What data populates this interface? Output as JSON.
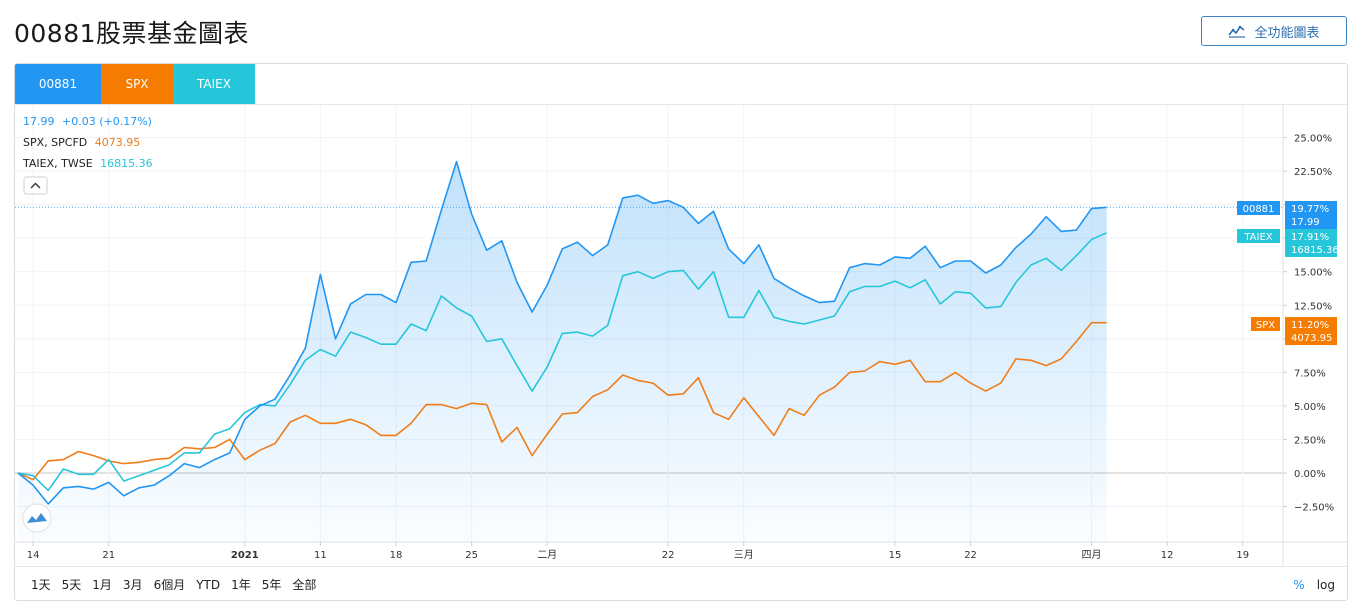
{
  "page_title": "00881股票基金圖表",
  "full_chart_button": "全功能圖表",
  "tabs": [
    "00881",
    "SPX",
    "TAIEX"
  ],
  "legend": {
    "main": {
      "value": "17.99",
      "change": "+0.03 (+0.17%)"
    },
    "spx": {
      "name": "SPX, SPCFD",
      "value": "4073.95"
    },
    "taiex": {
      "name": "TAIEX, TWSE",
      "value": "16815.36"
    }
  },
  "range_buttons": [
    "1天",
    "5天",
    "1月",
    "3月",
    "6個月",
    "YTD",
    "1年",
    "5年",
    "全部"
  ],
  "scale_buttons": {
    "percent": "%",
    "log": "log"
  },
  "colors": {
    "main": "#2196f3",
    "spx": "#ef7d1a",
    "taiex": "#26c6da",
    "grid": "#f0f3fa"
  },
  "chart_data": {
    "type": "line",
    "y_unit": "%",
    "ylim": [
      -4,
      27
    ],
    "y_ticks": [
      "25.00%",
      "22.50%",
      "20.00%",
      "17.50%",
      "15.00%",
      "12.50%",
      "10.00%",
      "7.50%",
      "5.00%",
      "2.50%",
      "0.00%",
      "−2.50%"
    ],
    "y_tick_values": [
      25,
      22.5,
      20,
      17.5,
      15,
      12.5,
      10,
      7.5,
      5,
      2.5,
      0,
      -2.5
    ],
    "x_ticks": [
      {
        "label": "14",
        "i": 1,
        "bold": false
      },
      {
        "label": "21",
        "i": 6,
        "bold": false
      },
      {
        "label": "2021",
        "i": 15,
        "bold": true
      },
      {
        "label": "11",
        "i": 20,
        "bold": false
      },
      {
        "label": "18",
        "i": 25,
        "bold": false
      },
      {
        "label": "25",
        "i": 30,
        "bold": false
      },
      {
        "label": "二月",
        "i": 35,
        "bold": false
      },
      {
        "label": "22",
        "i": 43,
        "bold": false
      },
      {
        "label": "三月",
        "i": 48,
        "bold": false
      },
      {
        "label": "15",
        "i": 58,
        "bold": false
      },
      {
        "label": "22",
        "i": 63,
        "bold": false
      },
      {
        "label": "四月",
        "i": 71,
        "bold": false
      },
      {
        "label": "12",
        "i": 76,
        "bold": false
      },
      {
        "label": "19",
        "i": 81,
        "bold": false
      }
    ],
    "x_count": 86,
    "series": [
      {
        "name": "00881",
        "last_pct": "19.77%",
        "last_value": "17.99",
        "values": [
          0,
          -0.9,
          -2.3,
          -1.1,
          -1.0,
          -1.2,
          -0.7,
          -1.7,
          -1.1,
          -0.9,
          -0.2,
          0.7,
          0.4,
          1.0,
          1.5,
          4.0,
          5.0,
          5.5,
          7.3,
          9.3,
          14.8,
          10.0,
          12.6,
          13.3,
          13.3,
          12.7,
          15.7,
          15.8,
          19.6,
          23.2,
          19.3,
          16.6,
          17.3,
          14.2,
          12.0,
          14.0,
          16.7,
          17.2,
          16.2,
          17.0,
          20.5,
          20.7,
          20.1,
          20.3,
          19.8,
          18.6,
          19.5,
          16.7,
          15.6,
          17.0,
          14.5,
          13.8,
          13.2,
          12.7,
          12.8,
          15.3,
          15.6,
          15.5,
          16.1,
          16.0,
          16.9,
          15.3,
          15.8,
          15.8,
          14.9,
          15.5,
          16.8,
          17.8,
          19.1,
          18.0,
          18.1,
          19.7,
          19.8
        ]
      },
      {
        "name": "SPX",
        "last_pct": "11.20%",
        "last_value": "4073.95",
        "values": [
          0,
          -0.5,
          0.9,
          1.0,
          1.6,
          1.3,
          0.9,
          0.7,
          0.8,
          1.0,
          1.1,
          1.9,
          1.8,
          1.9,
          2.5,
          1.0,
          1.7,
          2.2,
          3.8,
          4.3,
          3.7,
          3.7,
          4.0,
          3.6,
          2.8,
          2.8,
          3.7,
          5.1,
          5.1,
          4.8,
          5.2,
          5.1,
          2.3,
          3.4,
          1.3,
          2.9,
          4.4,
          4.5,
          5.7,
          6.2,
          7.3,
          6.9,
          6.7,
          5.8,
          5.9,
          7.1,
          4.5,
          4.0,
          5.6,
          4.2,
          2.8,
          4.8,
          4.3,
          5.8,
          6.4,
          7.5,
          7.6,
          8.3,
          8.1,
          8.4,
          6.8,
          6.8,
          7.5,
          6.7,
          6.1,
          6.7,
          8.5,
          8.4,
          8.0,
          8.5,
          9.8,
          11.2,
          11.2
        ]
      },
      {
        "name": "TAIEX",
        "last_pct": "17.91%",
        "last_value": "16815.36",
        "values": [
          0,
          -0.2,
          -1.3,
          0.3,
          -0.1,
          -0.1,
          1.0,
          -0.6,
          -0.2,
          0.2,
          0.6,
          1.5,
          1.5,
          2.9,
          3.3,
          4.5,
          5.1,
          5.0,
          6.6,
          8.4,
          9.2,
          8.7,
          10.5,
          10.1,
          9.6,
          9.6,
          11.1,
          10.6,
          13.2,
          12.3,
          11.7,
          9.8,
          10.0,
          8.0,
          6.1,
          7.9,
          10.4,
          10.5,
          10.2,
          11.0,
          14.7,
          15.0,
          14.5,
          15.0,
          15.1,
          13.7,
          15.0,
          11.6,
          11.6,
          13.6,
          11.6,
          11.3,
          11.1,
          11.4,
          11.7,
          13.5,
          13.9,
          13.9,
          14.3,
          13.8,
          14.4,
          12.6,
          13.5,
          13.4,
          12.3,
          12.4,
          14.2,
          15.5,
          16.0,
          15.1,
          16.2,
          17.4,
          17.9
        ]
      }
    ]
  }
}
